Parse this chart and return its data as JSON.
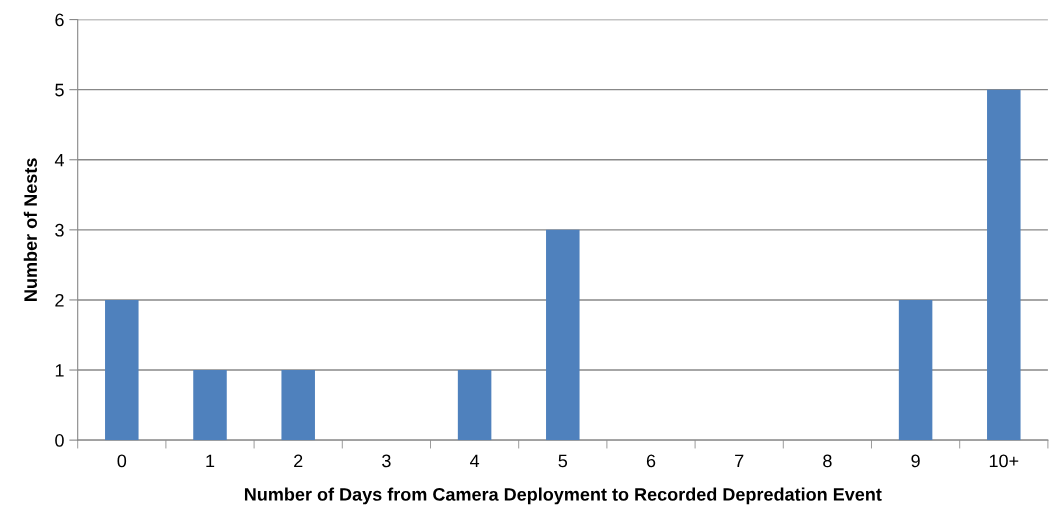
{
  "chart_data": {
    "type": "bar",
    "xlabel": "Number of Days from Camera Deployment to Recorded Depredation Event",
    "ylabel": "Number of Nests",
    "categories": [
      "0",
      "1",
      "2",
      "3",
      "4",
      "5",
      "6",
      "7",
      "8",
      "9",
      "10+"
    ],
    "values": [
      2,
      1,
      1,
      0,
      1,
      3,
      0,
      0,
      0,
      2,
      5
    ],
    "color": "#4f81bd",
    "ylim": [
      0,
      6
    ],
    "yticks": [
      0,
      1,
      2,
      3,
      4,
      5,
      6
    ],
    "grid": "y",
    "legend": false
  }
}
